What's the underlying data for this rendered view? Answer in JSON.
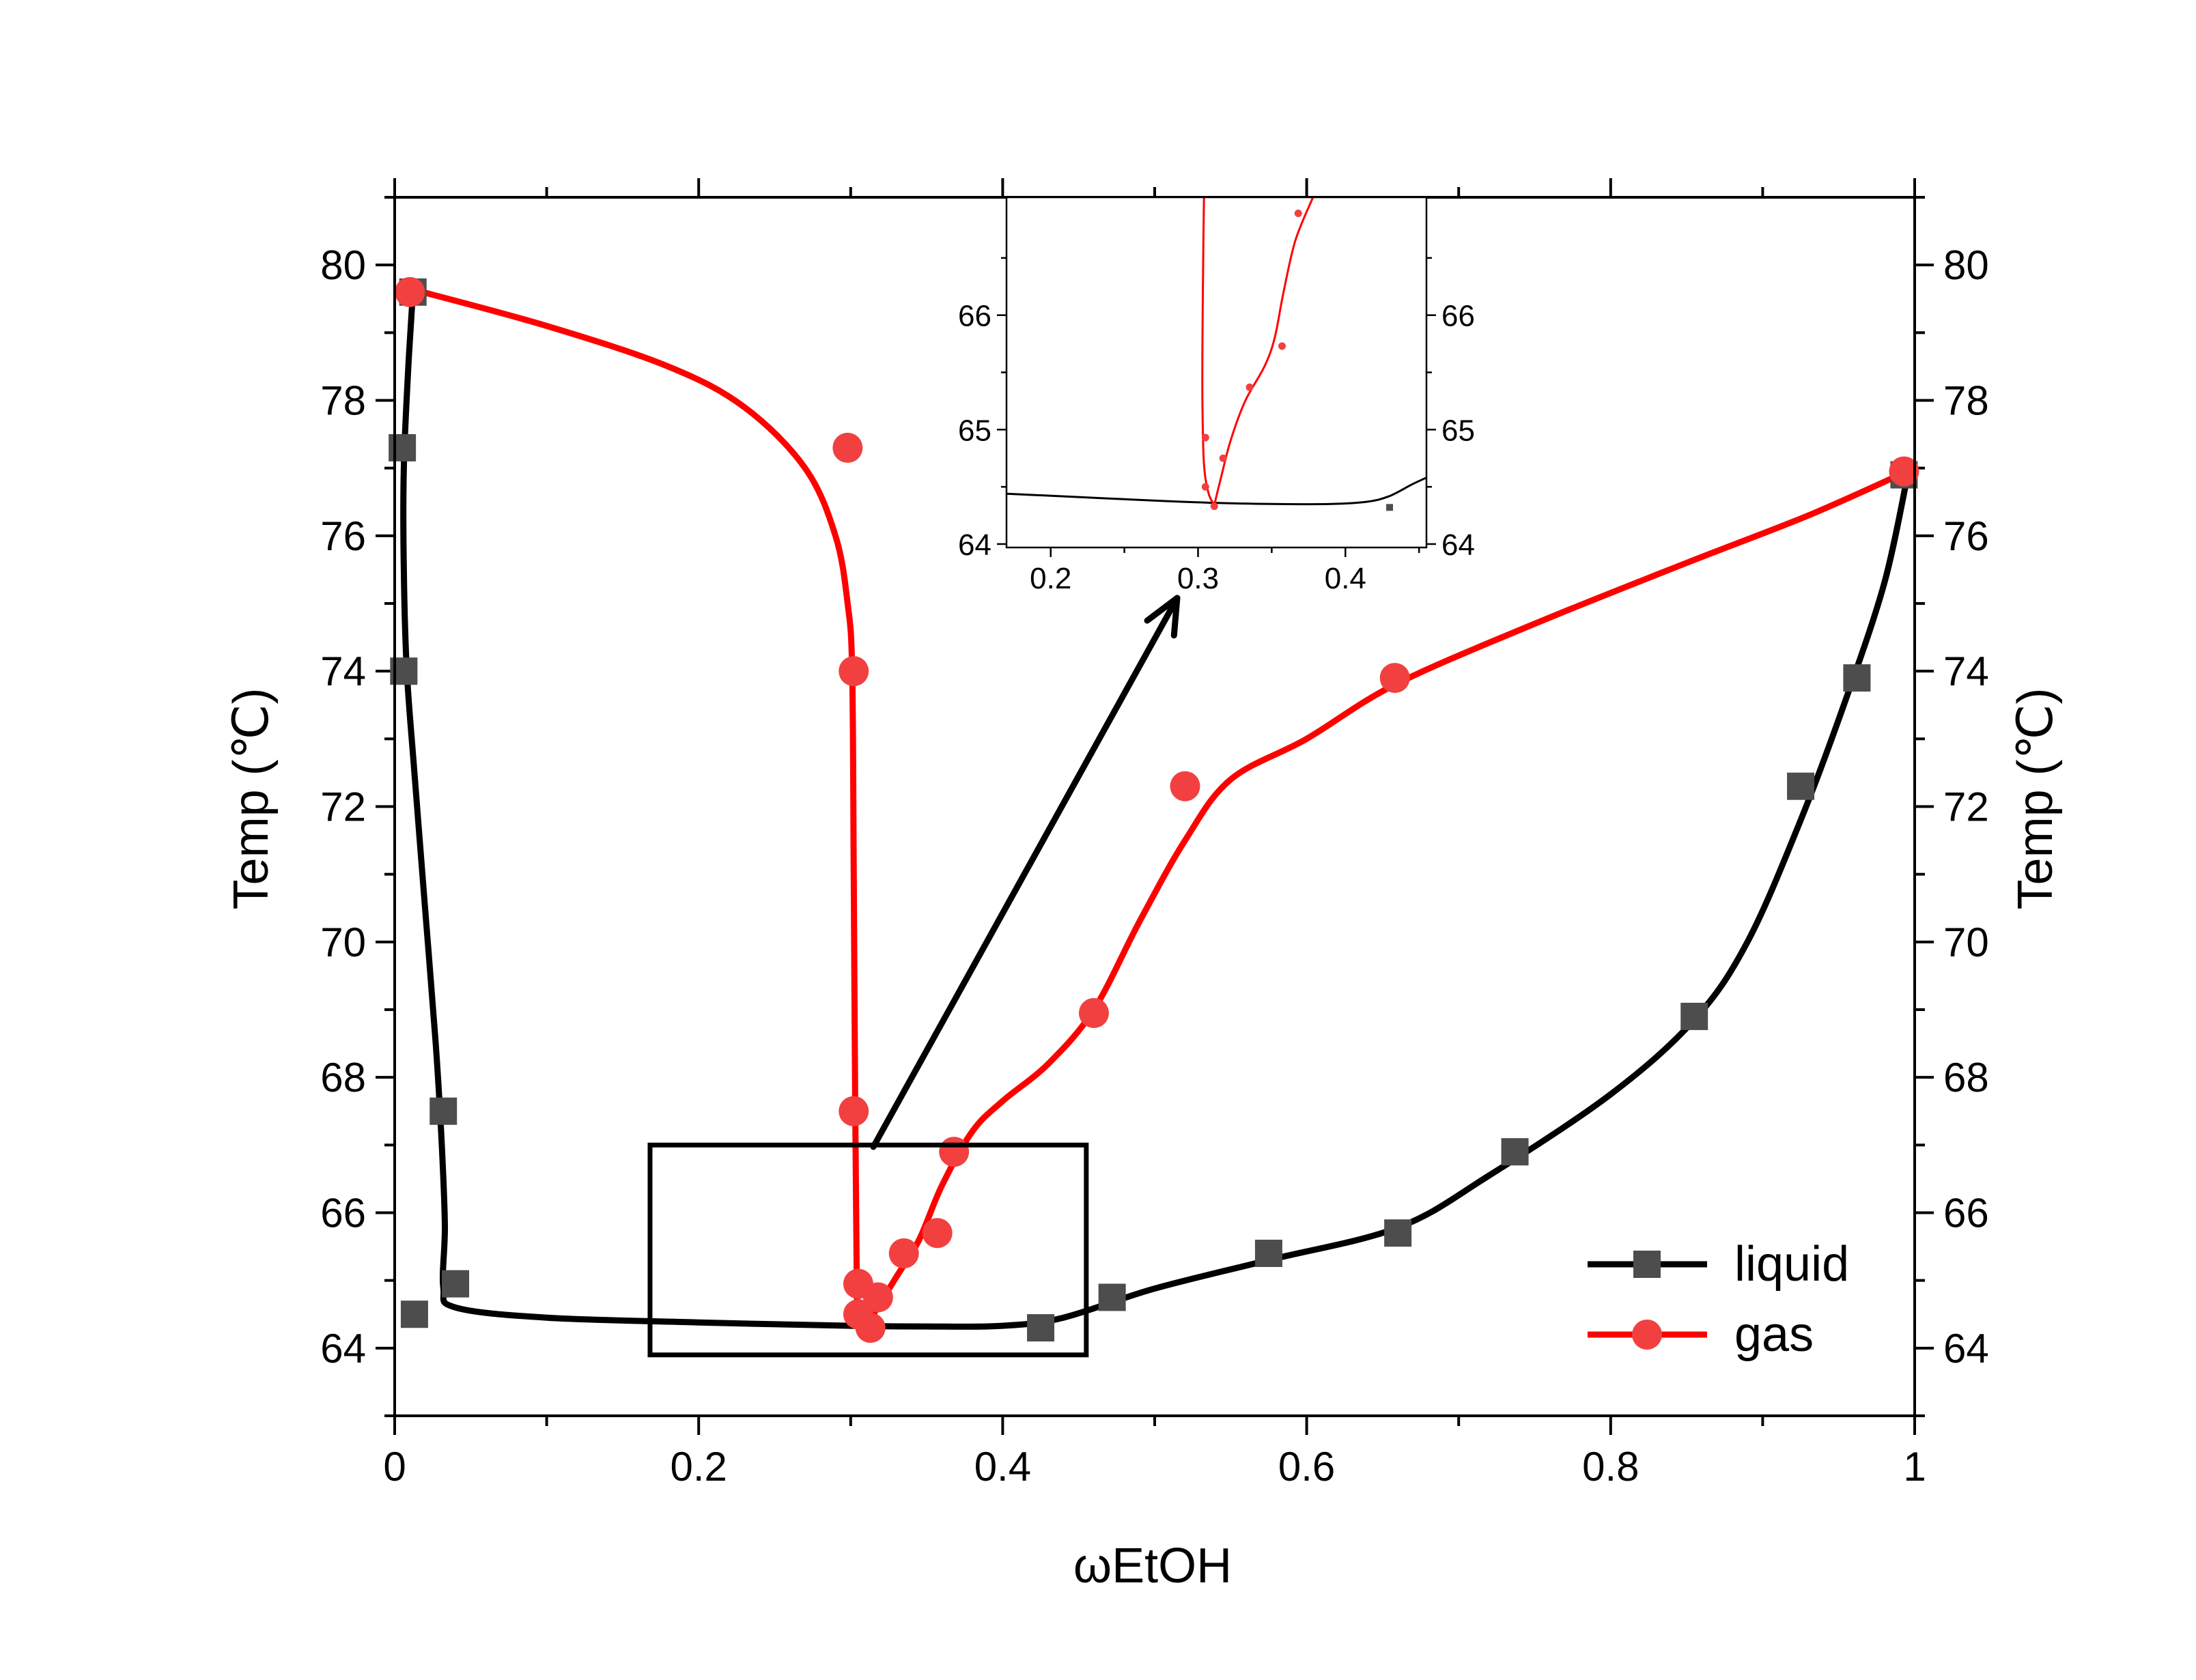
{
  "chart_data": {
    "type": "scatter",
    "xlabel": "ωEtOH",
    "ylabel": "Temp (℃)",
    "ylabel_right": "Temp (℃)",
    "xlim": [
      0,
      1
    ],
    "ylim": [
      63,
      81
    ],
    "x_ticks": [
      "0",
      "0.2",
      "0.4",
      "0.6",
      "0.8",
      "1"
    ],
    "x_tick_values": [
      0,
      0.2,
      0.4,
      0.6,
      0.8,
      1.0
    ],
    "y_ticks": [
      "64",
      "66",
      "68",
      "70",
      "72",
      "74",
      "76",
      "78",
      "80"
    ],
    "y_tick_values": [
      64,
      66,
      68,
      70,
      72,
      74,
      76,
      78,
      80
    ],
    "grid": false,
    "legend_position": "bottom-right",
    "series": [
      {
        "name": "liquid",
        "color": "#000000",
        "marker": "square",
        "marker_color": "#4d4d4d",
        "points": [
          [
            0.012,
            79.6
          ],
          [
            0.005,
            77.3
          ],
          [
            0.006,
            74.0
          ],
          [
            0.032,
            67.5
          ],
          [
            0.04,
            64.95
          ],
          [
            0.013,
            64.5
          ],
          [
            0.425,
            64.3
          ],
          [
            0.472,
            64.75
          ],
          [
            0.575,
            65.4
          ],
          [
            0.66,
            65.7
          ],
          [
            0.737,
            66.9
          ],
          [
            0.855,
            68.9
          ],
          [
            0.925,
            72.3
          ],
          [
            0.962,
            73.9
          ],
          [
            0.993,
            76.9
          ]
        ],
        "curve": [
          [
            0.012,
            79.6
          ],
          [
            0.009,
            78.5
          ],
          [
            0.006,
            77.0
          ],
          [
            0.006,
            75.5
          ],
          [
            0.008,
            74.0
          ],
          [
            0.013,
            72.5
          ],
          [
            0.02,
            70.5
          ],
          [
            0.027,
            68.5
          ],
          [
            0.031,
            67.0
          ],
          [
            0.033,
            65.8
          ],
          [
            0.032,
            64.9
          ],
          [
            0.04,
            64.6
          ],
          [
            0.1,
            64.45
          ],
          [
            0.2,
            64.38
          ],
          [
            0.3,
            64.33
          ],
          [
            0.35,
            64.32
          ],
          [
            0.4,
            64.33
          ],
          [
            0.44,
            64.45
          ],
          [
            0.5,
            64.88
          ],
          [
            0.575,
            65.3
          ],
          [
            0.66,
            65.78
          ],
          [
            0.72,
            66.55
          ],
          [
            0.8,
            67.75
          ],
          [
            0.855,
            68.85
          ],
          [
            0.89,
            70.0
          ],
          [
            0.925,
            71.8
          ],
          [
            0.955,
            73.6
          ],
          [
            0.98,
            75.3
          ],
          [
            0.995,
            76.85
          ]
        ]
      },
      {
        "name": "gas",
        "color": "#ff0000",
        "marker": "circle",
        "marker_color": "#f24040",
        "points": [
          [
            0.01,
            79.6
          ],
          [
            0.298,
            77.3
          ],
          [
            0.302,
            74.0
          ],
          [
            0.302,
            67.5
          ],
          [
            0.305,
            64.95
          ],
          [
            0.305,
            64.5
          ],
          [
            0.313,
            64.3
          ],
          [
            0.318,
            64.75
          ],
          [
            0.335,
            65.4
          ],
          [
            0.357,
            65.7
          ],
          [
            0.368,
            66.9
          ],
          [
            0.46,
            68.95
          ],
          [
            0.52,
            72.3
          ],
          [
            0.658,
            73.9
          ],
          [
            0.993,
            76.95
          ]
        ],
        "curve": [
          [
            0.01,
            79.65
          ],
          [
            0.1,
            79.1
          ],
          [
            0.18,
            78.5
          ],
          [
            0.23,
            77.9
          ],
          [
            0.27,
            77.0
          ],
          [
            0.29,
            76.0
          ],
          [
            0.298,
            75.0
          ],
          [
            0.301,
            74.0
          ],
          [
            0.302,
            71.0
          ],
          [
            0.303,
            67.5
          ],
          [
            0.304,
            65.0
          ],
          [
            0.305,
            64.35
          ],
          [
            0.31,
            64.28
          ],
          [
            0.315,
            64.5
          ],
          [
            0.33,
            65.05
          ],
          [
            0.345,
            65.6
          ],
          [
            0.36,
            66.4
          ],
          [
            0.38,
            67.2
          ],
          [
            0.4,
            67.65
          ],
          [
            0.43,
            68.2
          ],
          [
            0.46,
            69.0
          ],
          [
            0.49,
            70.3
          ],
          [
            0.52,
            71.5
          ],
          [
            0.55,
            72.4
          ],
          [
            0.6,
            73.0
          ],
          [
            0.658,
            73.8
          ],
          [
            0.75,
            74.7
          ],
          [
            0.85,
            75.6
          ],
          [
            0.93,
            76.3
          ],
          [
            0.995,
            76.95
          ]
        ]
      }
    ],
    "zoom_box": {
      "x": [
        0.168,
        0.455
      ],
      "y": [
        63.9,
        67.0
      ]
    },
    "inset": {
      "xlim": [
        0.17,
        0.455
      ],
      "ylim": [
        63.97,
        67.03
      ],
      "x_ticks": [
        "0.2",
        "0.3",
        "0.4"
      ],
      "x_tick_values": [
        0.2,
        0.3,
        0.4
      ],
      "y_ticks": [
        "64",
        "65",
        "66"
      ],
      "y_tick_values": [
        64,
        65,
        66
      ],
      "liquid_curve": [
        [
          0.17,
          64.44
        ],
        [
          0.22,
          64.41
        ],
        [
          0.27,
          64.38
        ],
        [
          0.31,
          64.36
        ],
        [
          0.35,
          64.35
        ],
        [
          0.39,
          64.35
        ],
        [
          0.415,
          64.37
        ],
        [
          0.43,
          64.42
        ],
        [
          0.445,
          64.52
        ],
        [
          0.455,
          64.58
        ]
      ],
      "liquid_points": [
        [
          0.43,
          64.32
        ]
      ],
      "gas_curve_left": [
        [
          0.304,
          67.03
        ],
        [
          0.3035,
          66.5
        ],
        [
          0.303,
          65.8
        ],
        [
          0.303,
          65.2
        ],
        [
          0.304,
          64.7
        ],
        [
          0.307,
          64.45
        ],
        [
          0.311,
          64.34
        ]
      ],
      "gas_curve_right": [
        [
          0.311,
          64.34
        ],
        [
          0.315,
          64.55
        ],
        [
          0.322,
          64.9
        ],
        [
          0.332,
          65.25
        ],
        [
          0.345,
          65.55
        ],
        [
          0.352,
          65.8
        ],
        [
          0.358,
          66.2
        ],
        [
          0.366,
          66.65
        ],
        [
          0.378,
          67.03
        ]
      ],
      "gas_points": [
        [
          0.305,
          64.93
        ],
        [
          0.305,
          64.5
        ],
        [
          0.311,
          64.33
        ],
        [
          0.317,
          64.75
        ],
        [
          0.335,
          65.37
        ],
        [
          0.357,
          65.73
        ],
        [
          0.368,
          66.89
        ]
      ]
    }
  }
}
